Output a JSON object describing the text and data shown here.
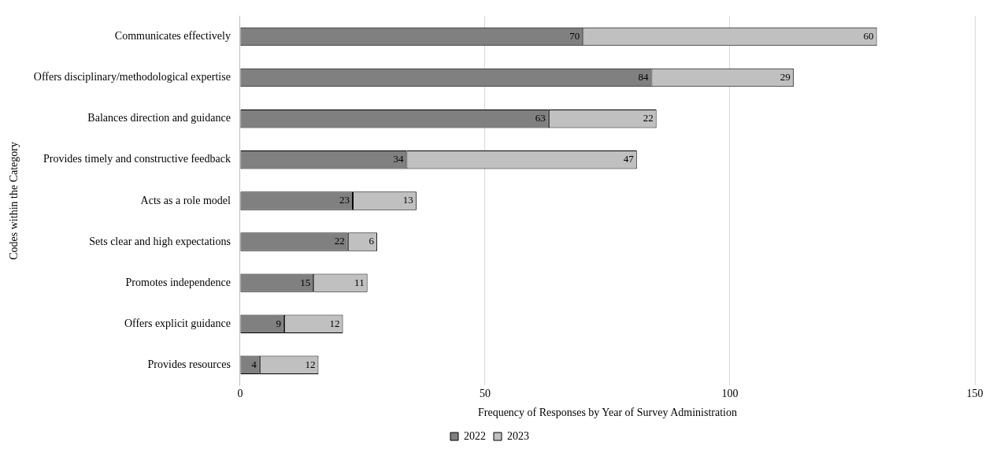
{
  "chart_data": {
    "type": "bar",
    "orientation": "horizontal",
    "stacked": true,
    "xlabel": "Frequency of Responses by Year of Survey Administration",
    "ylabel": "Codes within the Category",
    "categories": [
      "Communicates effectively",
      "Offers disciplinary/methodological expertise",
      "Balances direction and guidance",
      "Provides timely and constructive feedback",
      "Acts as a role model",
      "Sets clear and high expectations",
      "Promotes independence",
      "Offers explicit guidance",
      "Provides resources"
    ],
    "series": [
      {
        "name": "2022",
        "color": "#808080",
        "values": [
          70,
          84,
          63,
          34,
          23,
          22,
          15,
          9,
          4
        ]
      },
      {
        "name": "2023",
        "color": "#c0c0c0",
        "values": [
          60,
          29,
          22,
          47,
          13,
          6,
          11,
          12,
          12
        ]
      }
    ],
    "xlim": [
      0,
      150
    ],
    "xticks": [
      0,
      50,
      100,
      150
    ],
    "grid": "x",
    "legend": "bottom",
    "data_labels": true
  }
}
